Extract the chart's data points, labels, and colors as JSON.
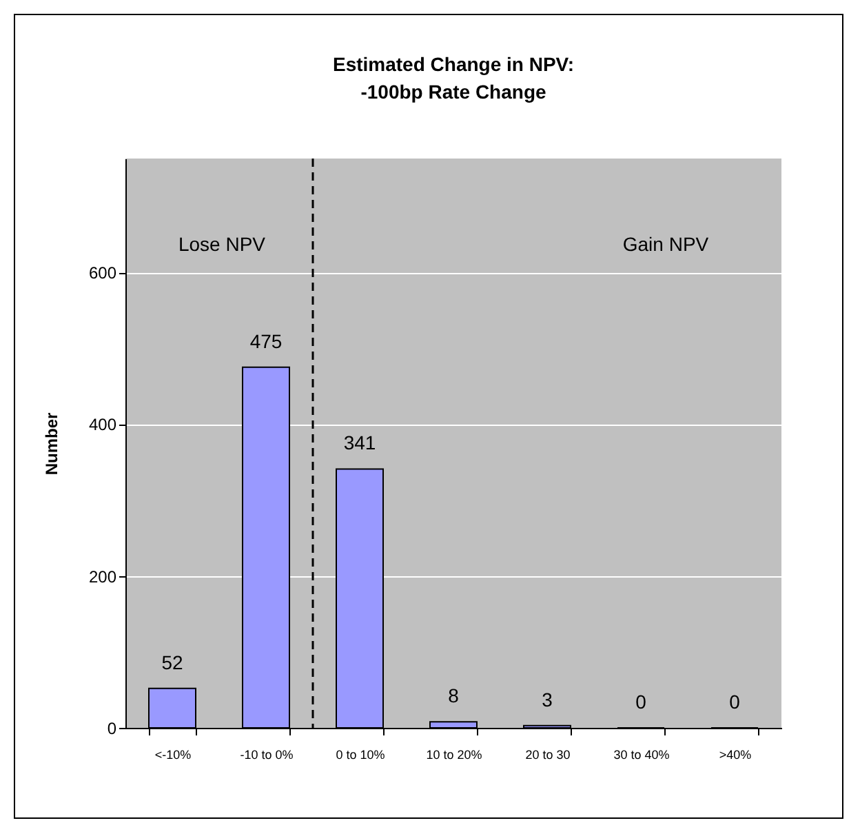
{
  "chart_data": {
    "type": "bar",
    "title": "Estimated Change in NPV:\n-100bp Rate Change",
    "ylabel": "Number",
    "categories": [
      "<-10%",
      "-10 to 0%",
      "0 to 10%",
      "10 to 20%",
      "20 to 30",
      "30 to 40%",
      ">40%"
    ],
    "values": [
      52,
      475,
      341,
      8,
      3,
      0,
      0
    ],
    "color": "#9999ff",
    "ylim": [
      0,
      750
    ],
    "yticks": [
      0,
      200,
      400,
      600
    ],
    "grid": "y",
    "data_labels": true,
    "ref_lines": [
      {
        "axis": "x",
        "value": "0 to 10%",
        "line_style": "dashed",
        "color": "#000000"
      }
    ],
    "annotations": [
      "Lose NPV",
      "Gain NPV"
    ]
  }
}
